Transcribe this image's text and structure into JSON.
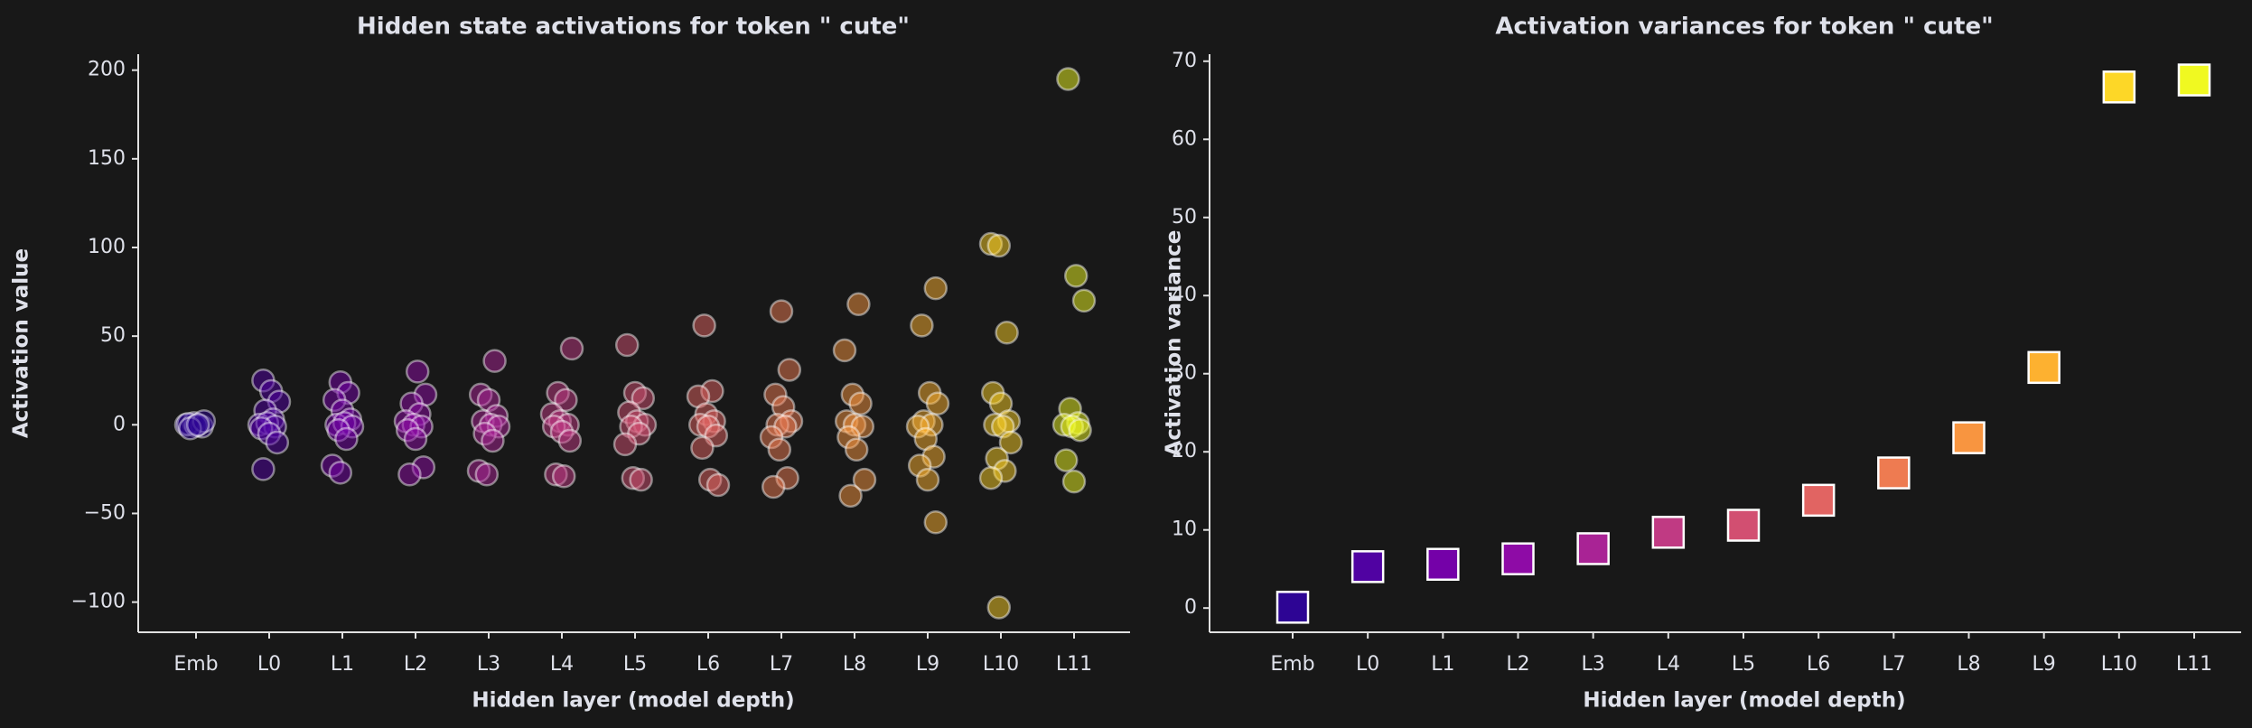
{
  "chart_data": [
    {
      "type": "strip",
      "title": "Hidden state activations for token \" cute\"",
      "xlabel": "Hidden layer (model depth)",
      "ylabel": "Activation value",
      "categories": [
        "Emb",
        "L0",
        "L1",
        "L2",
        "L3",
        "L4",
        "L5",
        "L6",
        "L7",
        "L8",
        "L9",
        "L10",
        "L11"
      ],
      "colors": [
        "#2d0594",
        "#5002a2",
        "#7401a8",
        "#8e0ba6",
        "#a92395",
        "#c03a83",
        "#d24f71",
        "#e16462",
        "#ee7b51",
        "#f89540",
        "#fdb130",
        "#fccf25",
        "#f0f921"
      ],
      "values": [
        [
          0,
          1,
          -1,
          0.5,
          -0.5,
          2,
          -2,
          0
        ],
        [
          25,
          19,
          13,
          8,
          3,
          0,
          1,
          -1,
          -2,
          -5,
          -10,
          -25
        ],
        [
          24,
          18,
          14,
          8,
          3,
          0,
          1,
          -1,
          -3,
          -8,
          -23,
          -27
        ],
        [
          30,
          17,
          12,
          6,
          2,
          0,
          -1,
          -3,
          -8,
          -24,
          -28
        ],
        [
          36,
          17,
          14,
          5,
          2,
          0,
          -1,
          -5,
          -9,
          -26,
          -28
        ],
        [
          43,
          18,
          14,
          6,
          2,
          0,
          -1,
          -4,
          -9,
          -28,
          -29
        ],
        [
          45,
          18,
          15,
          7,
          2,
          0,
          -1,
          -5,
          -11,
          -30,
          -31
        ],
        [
          56,
          19,
          16,
          6,
          2,
          0,
          -1,
          -6,
          -13,
          -31,
          -34
        ],
        [
          64,
          31,
          17,
          10,
          2,
          0,
          -1,
          -7,
          -14,
          -30,
          -35
        ],
        [
          68,
          42,
          17,
          12,
          2,
          0,
          -1,
          -7,
          -14,
          -31,
          -40
        ],
        [
          77,
          56,
          18,
          12,
          2,
          0,
          -1,
          -8,
          -18,
          -23,
          -31,
          -55
        ],
        [
          102,
          101,
          52,
          18,
          12,
          2,
          0,
          -1,
          -10,
          -19,
          -26,
          -30,
          -103
        ],
        [
          195,
          84,
          70,
          9,
          1,
          0,
          -1,
          -3,
          -20,
          -32
        ]
      ],
      "ylim": [
        -117,
        209
      ],
      "yticks": [
        {
          "value": -100,
          "label": "−100"
        },
        {
          "value": -50,
          "label": "−50"
        },
        0,
        50,
        100,
        150,
        200
      ]
    },
    {
      "type": "scatter",
      "title": "Activation variances for token \" cute\"",
      "xlabel": "Hidden layer (model depth)",
      "ylabel": "Activation variance",
      "categories": [
        "Emb",
        "L0",
        "L1",
        "L2",
        "L3",
        "L4",
        "L5",
        "L6",
        "L7",
        "L8",
        "L9",
        "L10",
        "L11"
      ],
      "colors": [
        "#2d0594",
        "#5002a2",
        "#7401a8",
        "#8e0ba6",
        "#a92395",
        "#c03a83",
        "#d24f71",
        "#e16462",
        "#ee7b51",
        "#f89540",
        "#fdb130",
        "#fdd727",
        "#f0f921"
      ],
      "values": [
        0.1,
        5.3,
        5.6,
        6.3,
        7.6,
        9.7,
        10.6,
        13.8,
        17.3,
        21.8,
        30.8,
        66.7,
        67.6
      ],
      "ylim": [
        -3.1,
        70.9
      ],
      "yticks": [
        0,
        10,
        20,
        30,
        40,
        50,
        60,
        70
      ]
    }
  ]
}
